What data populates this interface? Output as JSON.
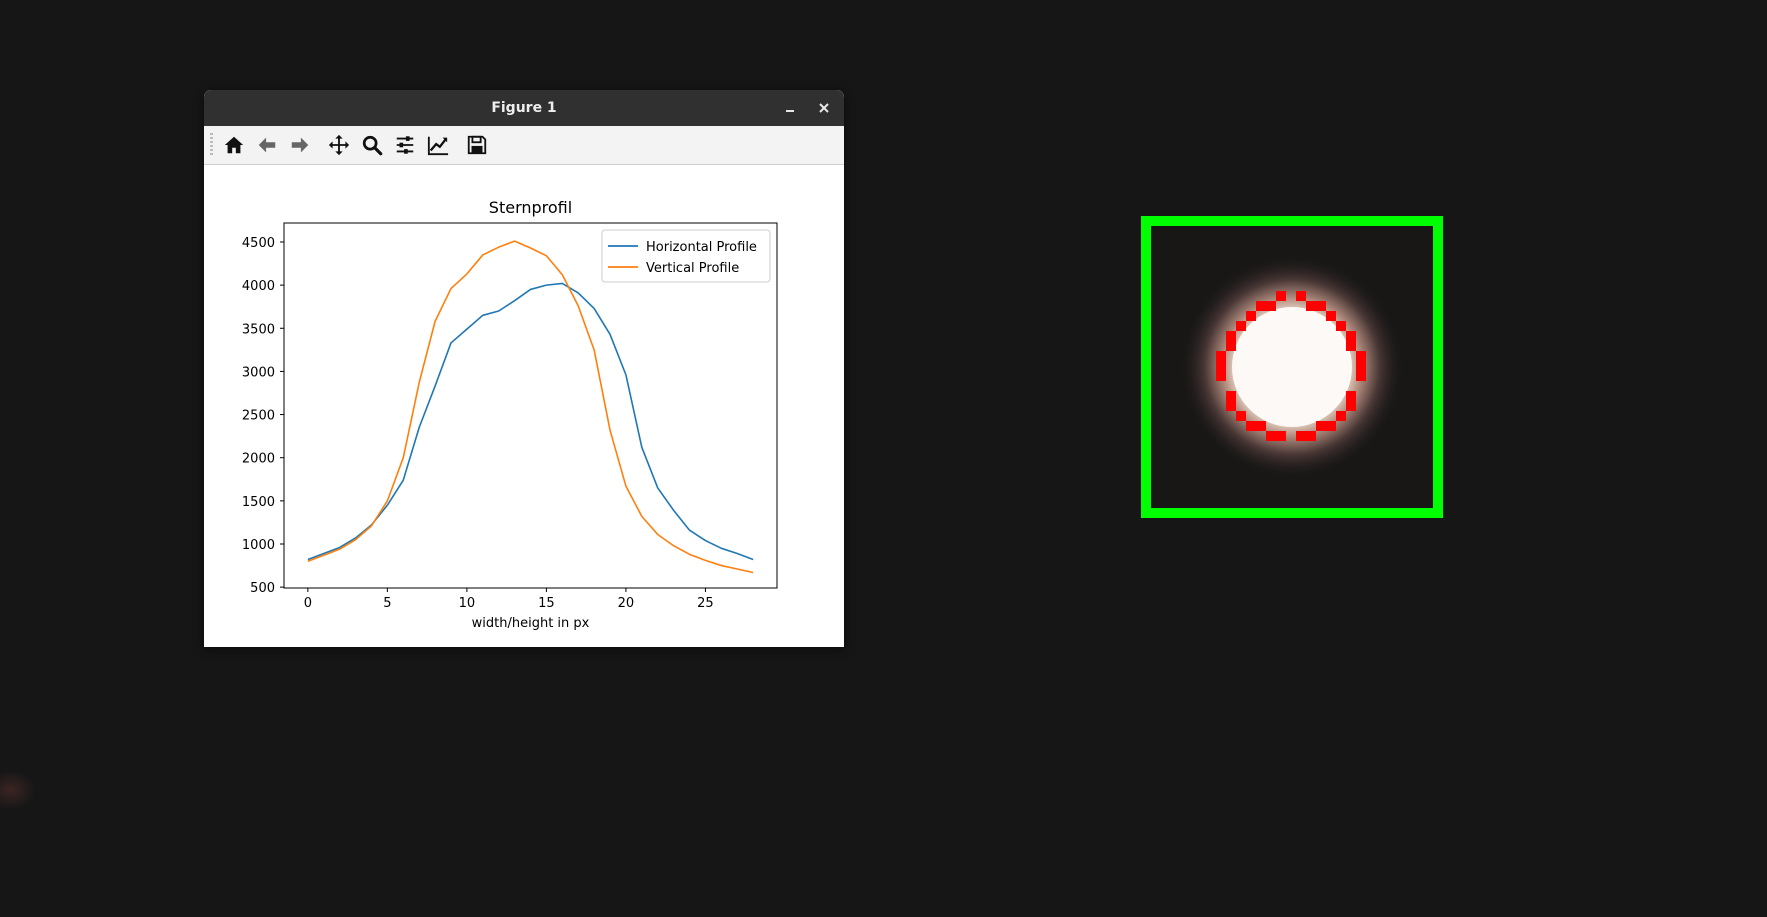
{
  "window": {
    "title": "Figure 1",
    "minimize_icon": "minimize-icon",
    "close_icon": "close-icon"
  },
  "toolbar": {
    "items": [
      {
        "name": "home-button",
        "icon": "home-icon"
      },
      {
        "name": "back-button",
        "icon": "arrow-left-icon"
      },
      {
        "name": "forward-button",
        "icon": "arrow-right-icon"
      },
      {
        "name": "pan-button",
        "icon": "move-icon"
      },
      {
        "name": "zoom-button",
        "icon": "magnifier-icon"
      },
      {
        "name": "subplots-button",
        "icon": "sliders-icon"
      },
      {
        "name": "edit-axes-button",
        "icon": "line-chart-icon"
      },
      {
        "name": "save-button",
        "icon": "floppy-disk-icon"
      }
    ]
  },
  "colors": {
    "horizontal": "#1f77b4",
    "vertical": "#ff7f0e",
    "roi_box": "#00ff00",
    "star_marker": "#ff0000",
    "background": "#161616"
  },
  "chart_data": {
    "type": "line",
    "title": "Sternprofil",
    "xlabel": "width/height in px",
    "ylabel": "",
    "xlim": [
      -1.5,
      29.5
    ],
    "ylim": [
      490,
      4720
    ],
    "xticks": [
      0,
      5,
      10,
      15,
      20,
      25
    ],
    "yticks": [
      500,
      1000,
      1500,
      2000,
      2500,
      3000,
      3500,
      4000,
      4500
    ],
    "legend": "top-right",
    "grid": false,
    "x": [
      0,
      1,
      2,
      3,
      4,
      5,
      6,
      7,
      8,
      9,
      10,
      11,
      12,
      13,
      14,
      15,
      16,
      17,
      18,
      19,
      20,
      21,
      22,
      23,
      24,
      25,
      26,
      27,
      28
    ],
    "series": [
      {
        "name": "Horizontal Profile",
        "color": "#1f77b4",
        "values": [
          820,
          890,
          960,
          1070,
          1220,
          1450,
          1740,
          2350,
          2830,
          3330,
          3490,
          3650,
          3700,
          3820,
          3950,
          4000,
          4020,
          3910,
          3730,
          3430,
          2960,
          2120,
          1650,
          1390,
          1160,
          1040,
          950,
          890,
          820
        ]
      },
      {
        "name": "Vertical Profile",
        "color": "#ff7f0e",
        "values": [
          800,
          870,
          940,
          1050,
          1210,
          1500,
          2000,
          2870,
          3580,
          3960,
          4130,
          4350,
          4440,
          4510,
          4430,
          4340,
          4120,
          3760,
          3250,
          2320,
          1670,
          1320,
          1110,
          980,
          880,
          810,
          750,
          710,
          670
        ]
      }
    ]
  }
}
